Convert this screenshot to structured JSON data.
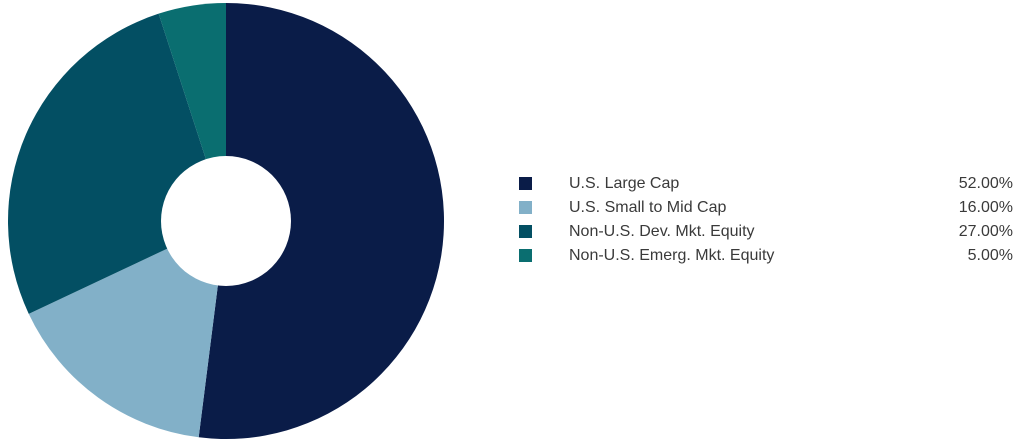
{
  "chart_data": {
    "type": "pie",
    "donut": true,
    "categories": [
      "U.S. Large Cap",
      "U.S. Small to Mid Cap",
      "Non-U.S. Dev. Mkt. Equity",
      "Non-U.S. Emerg. Mkt. Equity"
    ],
    "values": [
      52,
      16,
      27,
      5
    ],
    "value_labels": [
      "52.00%",
      "16.00%",
      "27.00%",
      "5.00%"
    ],
    "colors": [
      "#0a1c48",
      "#82b0c8",
      "#034f63",
      "#0a6e70"
    ],
    "title": "",
    "legend_position": "right"
  }
}
